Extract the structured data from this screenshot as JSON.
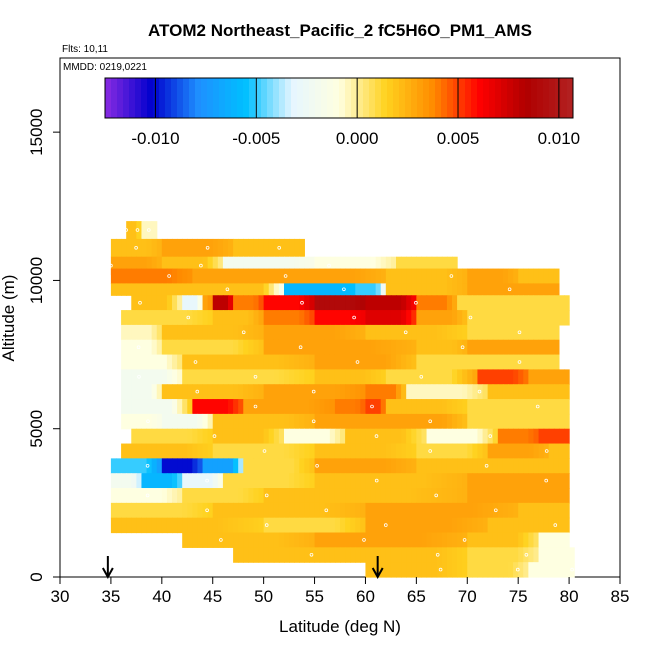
{
  "chart_data": {
    "type": "heatmap",
    "title": "ATOM2 Northeast_Pacific_2 fC5H6O_PM1_AMS",
    "flights_label": "Flts: 10,11",
    "mmdd_label": "MMDD: 0219,0221",
    "xlabel": "Latitude (deg N)",
    "ylabel": "Altitude (m)",
    "xlim": [
      30,
      85
    ],
    "ylim": [
      0,
      17500
    ],
    "x_ticks": [
      30,
      35,
      40,
      45,
      50,
      55,
      60,
      65,
      70,
      75,
      80,
      85
    ],
    "y_ticks": [
      0,
      5000,
      10000,
      15000
    ],
    "colorbar": {
      "range": [
        -0.0125,
        0.0107
      ],
      "ticks": [
        -0.01,
        -0.005,
        0,
        0.005,
        0.01
      ],
      "tick_labels": [
        "-0.010",
        "-0.005",
        "0.000",
        "0.005",
        "0.010"
      ],
      "colors": [
        "#8a2be2",
        "#0000cd",
        "#1e90ff",
        "#00bfff",
        "#e6f6ff",
        "#ffffe0",
        "#ffd21f",
        "#ff8c00",
        "#ff0000",
        "#b00000",
        "#b22222"
      ]
    },
    "arrows_latitude": [
      34.7,
      61.2
    ],
    "bands": [
      {
        "alt": [
          11400,
          12000
        ],
        "x": [
          36.5,
          39.5
        ],
        "segments": [
          [
            36.5,
            0.002
          ],
          [
            38,
            -0.0005
          ]
        ]
      },
      {
        "alt": [
          10800,
          11400
        ],
        "x": [
          35,
          54
        ],
        "segments": [
          [
            35,
            0.002
          ],
          [
            40,
            0.003
          ],
          [
            47,
            0.002
          ]
        ]
      },
      {
        "alt": [
          10200,
          10800
        ],
        "x": [
          35,
          69
        ],
        "segments": [
          [
            35,
            0.003
          ],
          [
            40,
            0.002
          ],
          [
            46,
            -0.002
          ],
          [
            55,
            -0.001
          ],
          [
            63,
            0.001
          ]
        ]
      },
      {
        "alt": [
          9900,
          10400
        ],
        "x": [
          35,
          79
        ],
        "segments": [
          [
            35,
            0.004
          ],
          [
            43,
            0.003
          ],
          [
            52,
            0.003
          ],
          [
            62,
            0.002
          ],
          [
            70,
            0.003
          ],
          [
            75,
            0.002
          ]
        ]
      },
      {
        "alt": [
          9500,
          9900
        ],
        "x": [
          35,
          79
        ],
        "segments": [
          [
            35,
            0.002
          ],
          [
            45,
            0.002
          ],
          [
            52,
            -0.006
          ],
          [
            59,
            -0.005
          ],
          [
            62,
            0.002
          ],
          [
            70,
            0.003
          ]
        ]
      },
      {
        "alt": [
          9000,
          9500
        ],
        "x": [
          37,
          80
        ],
        "segments": [
          [
            37,
            0.002
          ],
          [
            42,
            -0.003
          ],
          [
            44,
            0.003
          ],
          [
            45,
            0.008
          ],
          [
            47,
            0.004
          ],
          [
            50,
            0.006
          ],
          [
            55,
            0.009
          ],
          [
            60,
            0.008
          ],
          [
            65,
            0.004
          ],
          [
            69,
            0.001
          ],
          [
            75,
            0.001
          ]
        ]
      },
      {
        "alt": [
          8500,
          9000
        ],
        "x": [
          36,
          80
        ],
        "segments": [
          [
            36,
            0.001
          ],
          [
            45,
            0.002
          ],
          [
            50,
            0.004
          ],
          [
            55,
            0.006
          ],
          [
            60,
            0.007
          ],
          [
            65,
            0.003
          ],
          [
            70,
            0.001
          ]
        ]
      },
      {
        "alt": [
          8000,
          8500
        ],
        "x": [
          36,
          79
        ],
        "segments": [
          [
            36,
            -0.0005
          ],
          [
            40,
            0.002
          ],
          [
            50,
            0.003
          ],
          [
            60,
            0.002
          ],
          [
            70,
            0.001
          ]
        ]
      },
      {
        "alt": [
          7500,
          8000
        ],
        "x": [
          36,
          79
        ],
        "segments": [
          [
            36,
            -0.001
          ],
          [
            40,
            0.001
          ],
          [
            50,
            0.003
          ],
          [
            65,
            0.002
          ],
          [
            70,
            0.003
          ]
        ]
      },
      {
        "alt": [
          7000,
          7500
        ],
        "x": [
          36,
          79
        ],
        "segments": [
          [
            36,
            -0.001
          ],
          [
            42,
            0.002
          ],
          [
            55,
            0.003
          ],
          [
            65,
            0.001
          ]
        ]
      },
      {
        "alt": [
          6500,
          7000
        ],
        "x": [
          36,
          80
        ],
        "segments": [
          [
            36,
            -0.002
          ],
          [
            42,
            0.001
          ],
          [
            55,
            0.002
          ],
          [
            62,
            0.001
          ],
          [
            71,
            0.005
          ],
          [
            76,
            0.003
          ]
        ]
      },
      {
        "alt": [
          6000,
          6500
        ],
        "x": [
          36,
          80
        ],
        "segments": [
          [
            36,
            -0.002
          ],
          [
            40,
            0.002
          ],
          [
            50,
            0.003
          ],
          [
            60,
            0.004
          ],
          [
            64,
            -0.0005
          ],
          [
            72,
            0.002
          ]
        ]
      },
      {
        "alt": [
          5500,
          6000
        ],
        "x": [
          36,
          80
        ],
        "segments": [
          [
            36,
            -0.002
          ],
          [
            43,
            0.006
          ],
          [
            48,
            0.003
          ],
          [
            57,
            0.004
          ],
          [
            60,
            0.005
          ],
          [
            62,
            0.002
          ],
          [
            70,
            0.001
          ]
        ]
      },
      {
        "alt": [
          5000,
          5500
        ],
        "x": [
          36,
          80
        ],
        "segments": [
          [
            36,
            -0.001
          ],
          [
            40,
            -0.002
          ],
          [
            45,
            0.002
          ],
          [
            55,
            0.003
          ],
          [
            62,
            0.003
          ],
          [
            70,
            0.001
          ]
        ]
      },
      {
        "alt": [
          4500,
          5000
        ],
        "x": [
          37,
          80
        ],
        "segments": [
          [
            37,
            0.001
          ],
          [
            45,
            0.002
          ],
          [
            52,
            -0.001
          ],
          [
            58,
            0.002
          ],
          [
            66,
            -0.001
          ],
          [
            73,
            0.004
          ],
          [
            77,
            0.005
          ]
        ]
      },
      {
        "alt": [
          4000,
          4500
        ],
        "x": [
          36,
          80
        ],
        "segments": [
          [
            36,
            0.002
          ],
          [
            45,
            0.001
          ],
          [
            55,
            0.002
          ],
          [
            65,
            0.001
          ],
          [
            72,
            0.003
          ],
          [
            78,
            0.002
          ]
        ]
      },
      {
        "alt": [
          3500,
          4000
        ],
        "x": [
          35,
          80
        ],
        "segments": [
          [
            35,
            -0.005
          ],
          [
            40,
            -0.01
          ],
          [
            44,
            -0.007
          ],
          [
            48,
            0.001
          ],
          [
            55,
            0.003
          ],
          [
            65,
            0.002
          ],
          [
            72,
            0.002
          ]
        ]
      },
      {
        "alt": [
          3000,
          3500
        ],
        "x": [
          35,
          80
        ],
        "segments": [
          [
            35,
            -0.002
          ],
          [
            38,
            -0.006
          ],
          [
            42,
            -0.003
          ],
          [
            46,
            0.001
          ],
          [
            55,
            0.002
          ],
          [
            70,
            0.003
          ]
        ]
      },
      {
        "alt": [
          2500,
          3000
        ],
        "x": [
          35,
          80
        ],
        "segments": [
          [
            35,
            -0.001
          ],
          [
            42,
            0.001
          ],
          [
            50,
            0.002
          ],
          [
            70,
            0.003
          ]
        ]
      },
      {
        "alt": [
          2000,
          2500
        ],
        "x": [
          35,
          80
        ],
        "segments": [
          [
            35,
            0.001
          ],
          [
            45,
            0.002
          ],
          [
            60,
            0.003
          ],
          [
            75,
            0.002
          ]
        ]
      },
      {
        "alt": [
          1500,
          2000
        ],
        "x": [
          35,
          80
        ],
        "segments": [
          [
            35,
            0.002
          ],
          [
            50,
            0.001
          ],
          [
            60,
            0.003
          ],
          [
            72,
            0.002
          ]
        ]
      },
      {
        "alt": [
          1000,
          1500
        ],
        "x": [
          42,
          80
        ],
        "segments": [
          [
            42,
            0.002
          ],
          [
            55,
            0.003
          ],
          [
            70,
            0.002
          ],
          [
            77,
            -0.001
          ]
        ]
      },
      {
        "alt": [
          500,
          1000
        ],
        "x": [
          47,
          80.5
        ],
        "segments": [
          [
            47,
            0.002
          ],
          [
            60,
            0.002
          ],
          [
            70,
            0.001
          ],
          [
            77,
            -0.001
          ]
        ]
      },
      {
        "alt": [
          0,
          500
        ],
        "x": [
          60,
          80.5
        ],
        "segments": [
          [
            60,
            0.002
          ],
          [
            70,
            0.001
          ],
          [
            76,
            -0.001
          ]
        ]
      }
    ]
  }
}
